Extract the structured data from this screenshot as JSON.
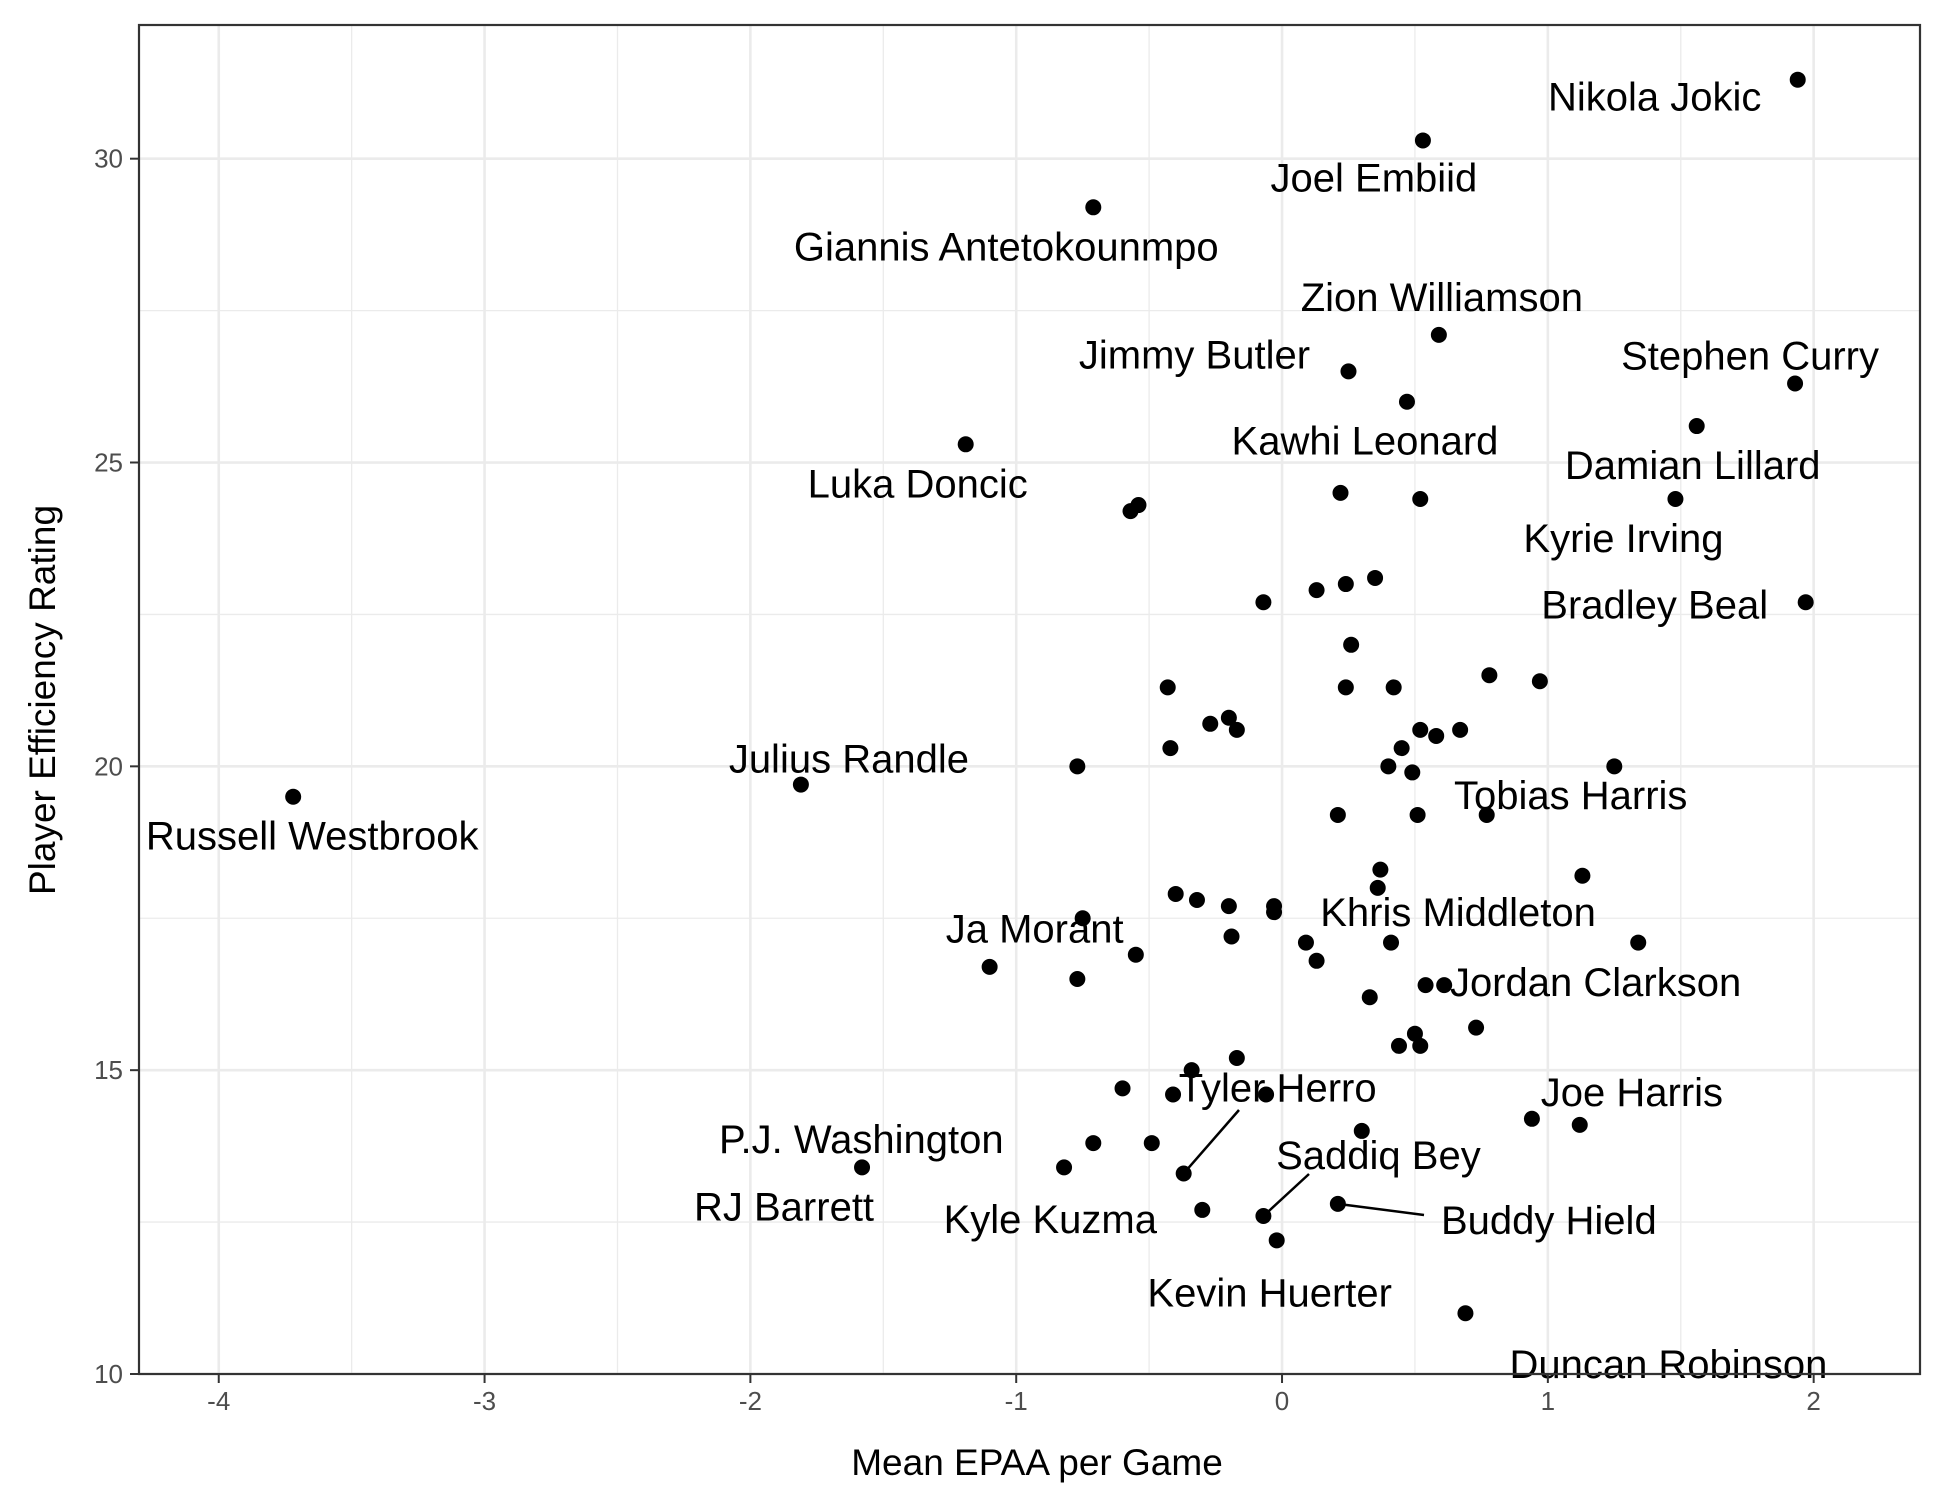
{
  "chart_data": {
    "type": "scatter",
    "title": "",
    "xlabel": "Mean EPAA per Game",
    "ylabel": "Player Efficiency Rating",
    "xlim": [
      -4.3,
      2.4
    ],
    "ylim": [
      10,
      32.2
    ],
    "x_ticks": [
      -4,
      -3,
      -2,
      -1,
      0,
      1,
      2
    ],
    "x_tick_labels": [
      "-4",
      "-3",
      "-2",
      "-1",
      "0",
      "1",
      "2"
    ],
    "y_ticks": [
      10,
      15,
      20,
      25,
      30
    ],
    "y_tick_labels": [
      "10",
      "15",
      "20",
      "25",
      "30"
    ],
    "grid": true,
    "legend": "none",
    "point_color": "#000000",
    "points": [
      {
        "x": 1.94,
        "y": 31.3,
        "label": "Nikola Jokic"
      },
      {
        "x": 0.53,
        "y": 30.3,
        "label": "Joel Embiid"
      },
      {
        "x": -0.71,
        "y": 29.2,
        "label": "Giannis Antetokounmpo"
      },
      {
        "x": 0.59,
        "y": 27.1,
        "label": "Zion Williamson"
      },
      {
        "x": 0.25,
        "y": 26.5,
        "label": "Jimmy Butler"
      },
      {
        "x": 1.93,
        "y": 26.3,
        "label": "Stephen Curry"
      },
      {
        "x": 0.47,
        "y": 26.0,
        "label": "Kawhi Leonard"
      },
      {
        "x": 1.56,
        "y": 25.6,
        "label": "Damian Lillard"
      },
      {
        "x": -1.19,
        "y": 25.3,
        "label": "Luka Doncic"
      },
      {
        "x": 1.48,
        "y": 24.4,
        "label": "Kyrie Irving"
      },
      {
        "x": 1.97,
        "y": 22.7,
        "label": "Bradley Beal"
      },
      {
        "x": -1.81,
        "y": 19.7,
        "label": "Julius Randle"
      },
      {
        "x": -3.72,
        "y": 19.5,
        "label": "Russell Westbrook"
      },
      {
        "x": 0.77,
        "y": 19.2,
        "label": "Tobias Harris"
      },
      {
        "x": -0.03,
        "y": 17.6,
        "label": "Khris Middleton"
      },
      {
        "x": -0.75,
        "y": 17.5,
        "label": "Ja Morant"
      },
      {
        "x": 0.54,
        "y": 16.4,
        "label": "Jordan Clarkson"
      },
      {
        "x": 0.94,
        "y": 14.2,
        "label": "Joe Harris"
      },
      {
        "x": -0.37,
        "y": 13.3,
        "label": "Tyler Herro"
      },
      {
        "x": -0.07,
        "y": 12.6,
        "label": "Saddiq Bey"
      },
      {
        "x": 0.21,
        "y": 12.8,
        "label": "Buddy Hield"
      },
      {
        "x": -0.71,
        "y": 13.8,
        "label": "P.J. Washington"
      },
      {
        "x": -1.58,
        "y": 13.4,
        "label": "RJ Barrett"
      },
      {
        "x": -0.3,
        "y": 12.7,
        "label": "Kyle Kuzma"
      },
      {
        "x": -0.02,
        "y": 12.2,
        "label": "Kevin Huerter"
      },
      {
        "x": 0.69,
        "y": 11.0,
        "label": "Duncan Robinson"
      },
      {
        "x": -0.54,
        "y": 24.3
      },
      {
        "x": -0.57,
        "y": 24.2
      },
      {
        "x": 0.22,
        "y": 24.5
      },
      {
        "x": 0.52,
        "y": 24.4
      },
      {
        "x": 0.35,
        "y": 23.1
      },
      {
        "x": 0.24,
        "y": 23.0
      },
      {
        "x": 0.13,
        "y": 22.9
      },
      {
        "x": -0.07,
        "y": 22.7
      },
      {
        "x": 0.26,
        "y": 22.0
      },
      {
        "x": 0.78,
        "y": 21.5
      },
      {
        "x": 0.97,
        "y": 21.4
      },
      {
        "x": -0.43,
        "y": 21.3
      },
      {
        "x": 0.24,
        "y": 21.3
      },
      {
        "x": 0.42,
        "y": 21.3
      },
      {
        "x": -0.27,
        "y": 20.7
      },
      {
        "x": -0.2,
        "y": 20.8
      },
      {
        "x": -0.17,
        "y": 20.6
      },
      {
        "x": 0.52,
        "y": 20.6
      },
      {
        "x": 0.67,
        "y": 20.6
      },
      {
        "x": 0.58,
        "y": 20.5
      },
      {
        "x": -0.42,
        "y": 20.3
      },
      {
        "x": 0.45,
        "y": 20.3
      },
      {
        "x": 0.4,
        "y": 20.0
      },
      {
        "x": 0.49,
        "y": 19.9
      },
      {
        "x": -0.77,
        "y": 20.0
      },
      {
        "x": 1.25,
        "y": 20.0
      },
      {
        "x": 0.21,
        "y": 19.2
      },
      {
        "x": 0.51,
        "y": 19.2
      },
      {
        "x": 0.37,
        "y": 18.3
      },
      {
        "x": 0.36,
        "y": 18.0
      },
      {
        "x": 1.13,
        "y": 18.2
      },
      {
        "x": -0.4,
        "y": 17.9
      },
      {
        "x": -0.32,
        "y": 17.8
      },
      {
        "x": -0.2,
        "y": 17.7
      },
      {
        "x": -0.03,
        "y": 17.7
      },
      {
        "x": -0.19,
        "y": 17.2
      },
      {
        "x": 0.09,
        "y": 17.1
      },
      {
        "x": 0.41,
        "y": 17.1
      },
      {
        "x": 1.34,
        "y": 17.1
      },
      {
        "x": -0.55,
        "y": 16.9
      },
      {
        "x": 0.13,
        "y": 16.8
      },
      {
        "x": -1.1,
        "y": 16.7
      },
      {
        "x": -0.77,
        "y": 16.5
      },
      {
        "x": 0.61,
        "y": 16.4
      },
      {
        "x": 0.33,
        "y": 16.2
      },
      {
        "x": 0.73,
        "y": 15.7
      },
      {
        "x": 0.5,
        "y": 15.6
      },
      {
        "x": 0.44,
        "y": 15.4
      },
      {
        "x": 0.52,
        "y": 15.4
      },
      {
        "x": -0.17,
        "y": 15.2
      },
      {
        "x": -0.34,
        "y": 15.0
      },
      {
        "x": -0.6,
        "y": 14.7
      },
      {
        "x": -0.41,
        "y": 14.6
      },
      {
        "x": -0.06,
        "y": 14.6
      },
      {
        "x": 0.3,
        "y": 14.0
      },
      {
        "x": 1.12,
        "y": 14.1
      },
      {
        "x": -0.49,
        "y": 13.8
      },
      {
        "x": -0.82,
        "y": 13.4
      }
    ]
  }
}
